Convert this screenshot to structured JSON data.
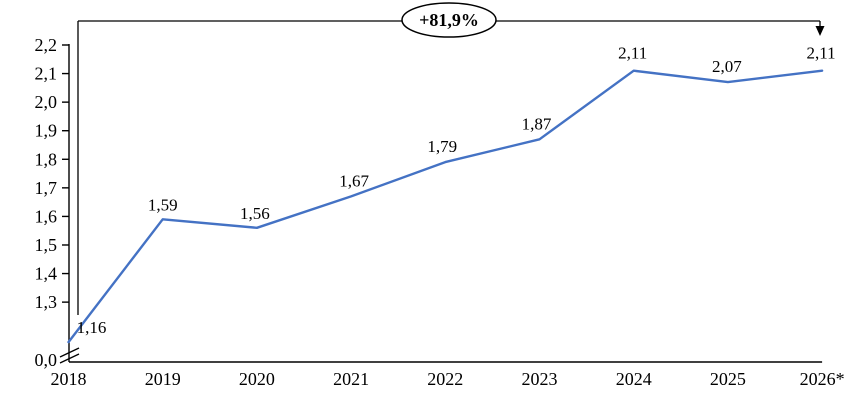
{
  "chart_data": {
    "type": "line",
    "title": "",
    "xlabel": "",
    "ylabel": "",
    "categories": [
      "2018",
      "2019",
      "2020",
      "2021",
      "2022",
      "2023",
      "2024",
      "2025",
      "2026*"
    ],
    "values": [
      1.16,
      1.59,
      1.56,
      1.67,
      1.79,
      1.87,
      2.11,
      2.07,
      2.11
    ],
    "value_labels": [
      "1,16",
      "1,59",
      "1,56",
      "1,67",
      "1,79",
      "1,87",
      "2,11",
      "2,07",
      "2,11"
    ],
    "y_ticks": [
      {
        "label": "2,2",
        "value": 2.2
      },
      {
        "label": "2,1",
        "value": 2.1
      },
      {
        "label": "2,0",
        "value": 2.0
      },
      {
        "label": "1,9",
        "value": 1.9
      },
      {
        "label": "1,8",
        "value": 1.8
      },
      {
        "label": "1,7",
        "value": 1.7
      },
      {
        "label": "1,6",
        "value": 1.6
      },
      {
        "label": "1,5",
        "value": 1.5
      },
      {
        "label": "1,4",
        "value": 1.4
      },
      {
        "label": "1,3",
        "value": 1.3
      }
    ],
    "y_axis_origin_label": "0,0",
    "axis_break": true,
    "ylim_display": [
      1.3,
      2.2
    ],
    "annotation": {
      "label": "+81,9%",
      "from_category": "2018",
      "to_category": "2026*"
    },
    "colors": {
      "line": "#4472C4",
      "axis": "#000000",
      "text": "#000000",
      "annotation_fill": "#ffffff",
      "annotation_stroke": "#000000"
    },
    "legend": null,
    "grid": false
  }
}
